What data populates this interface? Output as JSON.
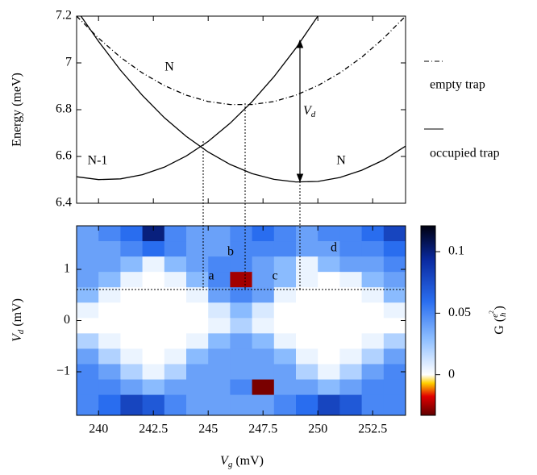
{
  "chart_data": [
    {
      "type": "line",
      "ylabel": "Energy (meV)",
      "xlim": [
        239,
        254
      ],
      "xticks": [
        240,
        242.5,
        245,
        247.5,
        250,
        252.5
      ],
      "ylim": [
        6.4,
        7.2
      ],
      "yticks": [
        6.4,
        6.6,
        6.8,
        7,
        7.2
      ],
      "series": [
        {
          "style": "dashdot",
          "color": "#000000",
          "x": [
            239,
            240,
            241,
            242,
            243,
            244,
            245,
            246,
            247,
            248,
            249,
            250,
            251,
            252,
            253,
            254
          ],
          "values": [
            7.2,
            7.106,
            7.024,
            6.957,
            6.903,
            6.862,
            6.835,
            6.822,
            6.822,
            6.835,
            6.862,
            6.903,
            6.957,
            7.024,
            7.106,
            7.2
          ]
        },
        {
          "style": "solid",
          "color": "#000000",
          "x": [
            239,
            240,
            241,
            242,
            243,
            244,
            245,
            246,
            247,
            248,
            249,
            250
          ],
          "values": [
            6.513,
            6.501,
            6.504,
            6.522,
            6.554,
            6.602,
            6.664,
            6.742,
            6.834,
            6.941,
            7.063,
            7.2
          ]
        },
        {
          "style": "solid",
          "color": "#000000",
          "x": [
            239.2,
            240,
            241,
            242,
            243,
            244,
            245,
            246,
            247,
            248,
            249,
            250,
            251,
            252,
            253,
            254
          ],
          "values": [
            7.2,
            7.092,
            6.969,
            6.861,
            6.766,
            6.686,
            6.619,
            6.566,
            6.527,
            6.502,
            6.491,
            6.493,
            6.51,
            6.541,
            6.585,
            6.644
          ]
        }
      ],
      "annotations": [
        "N",
        "N-1",
        "N",
        "V",
        "d"
      ],
      "legend": [
        {
          "label": "empty trap",
          "style": "dashdot"
        },
        {
          "label": "occupied trap",
          "style": "solid"
        }
      ]
    },
    {
      "type": "heatmap",
      "xlabel": {
        "main": "V",
        "sub": "g",
        "unit": " (mV)"
      },
      "ylabel": {
        "main": "V",
        "sub": "d",
        "unit": " (mV)"
      },
      "clabel": {
        "main": "G (",
        "num": "e",
        "sup": "2",
        "den": "h",
        "close": ")"
      },
      "xlim": [
        239,
        254
      ],
      "xticks": [
        240,
        {
          "value": 242.5,
          "label": "242.5"
        },
        245,
        {
          "value": 247.5,
          "label": "247.5"
        },
        250,
        {
          "value": 252.5,
          "label": "252.5"
        }
      ],
      "ylim": [
        -1.85,
        1.85
      ],
      "yticks": [
        {
          "value": -1,
          "label": "−1"
        },
        0,
        1
      ],
      "clim": [
        -0.033,
        0.121
      ],
      "cticks": [
        0,
        0.05,
        0.1
      ],
      "labels": [
        "a",
        "b",
        "c",
        "d"
      ],
      "x": [
        239.5,
        240.5,
        241.5,
        242.5,
        243.5,
        244.5,
        245.5,
        246.5,
        247.5,
        248.5,
        249.5,
        250.5,
        251.5,
        252.5,
        253.5
      ],
      "y": [
        1.7,
        1.4,
        1.1,
        0.8,
        0.5,
        0.2,
        -0.1,
        -0.4,
        -0.7,
        -1.0,
        -1.3,
        -1.6
      ],
      "z": [
        [
          0.04,
          0.05,
          0.06,
          0.1,
          0.05,
          0.04,
          0.04,
          0.05,
          0.06,
          0.05,
          0.04,
          0.05,
          0.05,
          0.06,
          0.08
        ],
        [
          0.04,
          0.04,
          0.05,
          0.06,
          0.05,
          0.04,
          0.04,
          0.05,
          0.05,
          0.05,
          0.04,
          0.04,
          0.05,
          0.05,
          0.06
        ],
        [
          0.04,
          0.04,
          0.03,
          0.005,
          0.03,
          0.04,
          0.05,
          0.05,
          0.04,
          0.03,
          0.005,
          0.03,
          0.04,
          0.04,
          0.05
        ],
        [
          0.04,
          0.03,
          0.005,
          0,
          0.005,
          0.03,
          0.05,
          -0.025,
          0.04,
          0.03,
          0.005,
          0,
          0.005,
          0.03,
          0.04
        ],
        [
          0.03,
          0.005,
          0,
          0,
          0,
          0.005,
          0.04,
          0.05,
          0.04,
          0.005,
          0,
          0,
          0,
          0.005,
          0.03
        ],
        [
          0.005,
          0,
          0,
          0,
          0,
          0,
          0.01,
          0.03,
          0.01,
          0,
          0,
          0,
          0,
          0,
          0.005
        ],
        [
          0,
          0,
          0,
          0,
          0,
          0,
          0.005,
          0.02,
          0.005,
          0,
          0,
          0,
          0,
          0,
          0
        ],
        [
          0.02,
          0.005,
          0,
          0,
          0,
          0.005,
          0.03,
          0.04,
          0.03,
          0.005,
          0,
          0,
          0,
          0.005,
          0.02
        ],
        [
          0.04,
          0.02,
          0.005,
          0,
          0.005,
          0.03,
          0.04,
          0.04,
          0.04,
          0.03,
          0.005,
          0,
          0.005,
          0.02,
          0.04
        ],
        [
          0.05,
          0.04,
          0.02,
          0.005,
          0.02,
          0.04,
          0.04,
          0.04,
          0.04,
          0.04,
          0.02,
          0.005,
          0.02,
          0.04,
          0.05
        ],
        [
          0.05,
          0.05,
          0.04,
          0.03,
          0.04,
          0.04,
          0.04,
          0.05,
          -0.03,
          0.04,
          0.04,
          0.03,
          0.04,
          0.05,
          0.05
        ],
        [
          0.05,
          0.06,
          0.08,
          0.07,
          0.05,
          0.04,
          0.04,
          0.04,
          0.04,
          0.05,
          0.06,
          0.08,
          0.07,
          0.05,
          0.05
        ]
      ]
    }
  ]
}
